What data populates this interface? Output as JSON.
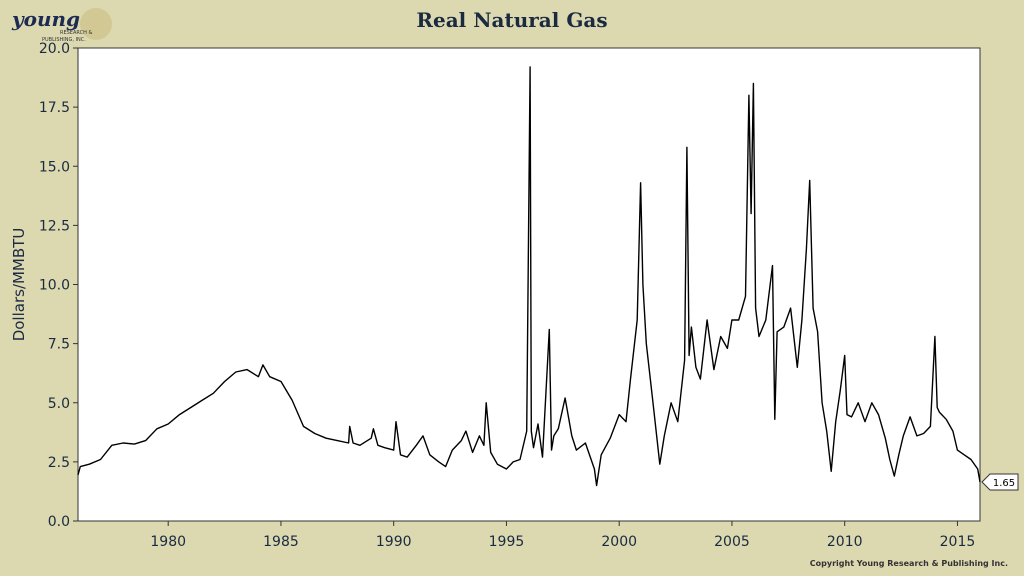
{
  "logo": {
    "wordmark": "young",
    "line2": "RESEARCH &",
    "line3": "PUBLISHING, INC."
  },
  "title": "Real Natural Gas",
  "copyright": "Copyright Young Research & Publishing Inc.",
  "colors": {
    "background": "#dcd9b1",
    "plot_bg": "#ffffff",
    "line": "#000000"
  },
  "chart_data": {
    "type": "line",
    "title": "Real Natural Gas",
    "xlabel": "",
    "ylabel": "Dollars/MMBTU",
    "xlim": [
      1976,
      2016
    ],
    "ylim": [
      0,
      20
    ],
    "x_ticks": [
      "1980",
      "1985",
      "1990",
      "1995",
      "2000",
      "2005",
      "2010",
      "2015"
    ],
    "y_ticks": [
      "0.0",
      "2.5",
      "5.0",
      "7.5",
      "10.0",
      "12.5",
      "15.0",
      "17.5",
      "20.0"
    ],
    "grid": false,
    "last_value_label": "1.65",
    "series": [
      {
        "x": [
          1976.0,
          1976.1,
          1976.5,
          1977.0,
          1977.5,
          1978.0,
          1978.5,
          1979.0,
          1979.5,
          1980.0,
          1980.5,
          1981.0,
          1981.5,
          1982.0,
          1982.5,
          1983.0,
          1983.5,
          1984.0,
          1984.2,
          1984.5,
          1985.0,
          1985.5,
          1986.0,
          1986.5,
          1987.0,
          1987.5,
          1988.0,
          1988.05,
          1988.2,
          1988.5,
          1989.0,
          1989.1,
          1989.3,
          1989.6,
          1990.0,
          1990.1,
          1990.3,
          1990.6,
          1991.0,
          1991.3,
          1991.6,
          1992.0,
          1992.3,
          1992.6,
          1993.0,
          1993.2,
          1993.5,
          1993.8,
          1994.0,
          1994.1,
          1994.3,
          1994.6,
          1995.0,
          1995.3,
          1995.6,
          1995.9,
          1996.05,
          1996.1,
          1996.2,
          1996.4,
          1996.6,
          1996.9,
          1997.0,
          1997.1,
          1997.3,
          1997.6,
          1997.9,
          1998.1,
          1998.5,
          1998.9,
          1999.0,
          1999.2,
          1999.6,
          2000.0,
          2000.3,
          2000.5,
          2000.8,
          2000.95,
          2001.05,
          2001.2,
          2001.5,
          2001.8,
          2002.0,
          2002.3,
          2002.6,
          2002.9,
          2003.0,
          2003.1,
          2003.2,
          2003.4,
          2003.6,
          2003.9,
          2004.2,
          2004.5,
          2004.8,
          2005.0,
          2005.3,
          2005.6,
          2005.75,
          2005.85,
          2005.95,
          2006.05,
          2006.2,
          2006.5,
          2006.8,
          2006.9,
          2007.0,
          2007.3,
          2007.6,
          2007.9,
          2008.1,
          2008.3,
          2008.45,
          2008.6,
          2008.8,
          2009.0,
          2009.2,
          2009.4,
          2009.6,
          2009.8,
          2010.0,
          2010.1,
          2010.3,
          2010.6,
          2010.9,
          2011.2,
          2011.5,
          2011.8,
          2012.0,
          2012.2,
          2012.4,
          2012.6,
          2012.9,
          2013.2,
          2013.5,
          2013.8,
          2014.0,
          2014.1,
          2014.2,
          2014.3,
          2014.5,
          2014.8,
          2015.0,
          2015.3,
          2015.6,
          2015.9,
          2016.0
        ],
        "values": [
          1.95,
          2.3,
          2.4,
          2.6,
          3.2,
          3.3,
          3.25,
          3.4,
          3.9,
          4.1,
          4.5,
          4.8,
          5.1,
          5.4,
          5.9,
          6.3,
          6.4,
          6.1,
          6.6,
          6.1,
          5.9,
          5.1,
          4.0,
          3.7,
          3.5,
          3.4,
          3.3,
          4.0,
          3.3,
          3.2,
          3.5,
          3.9,
          3.2,
          3.1,
          3.0,
          4.2,
          2.8,
          2.7,
          3.2,
          3.6,
          2.8,
          2.5,
          2.3,
          3.0,
          3.4,
          3.8,
          2.9,
          3.6,
          3.2,
          5.0,
          2.9,
          2.4,
          2.2,
          2.5,
          2.6,
          3.8,
          19.2,
          3.8,
          3.1,
          4.1,
          2.7,
          8.1,
          3.0,
          3.6,
          3.9,
          5.2,
          3.6,
          3.0,
          3.3,
          2.2,
          1.5,
          2.8,
          3.5,
          4.5,
          4.2,
          6.0,
          8.5,
          14.3,
          10.0,
          7.5,
          5.0,
          2.4,
          3.6,
          5.0,
          4.2,
          6.8,
          15.8,
          7.0,
          8.2,
          6.5,
          6.0,
          8.5,
          6.4,
          7.8,
          7.3,
          8.5,
          8.5,
          9.5,
          18.0,
          13.0,
          18.5,
          9.0,
          7.8,
          8.5,
          10.8,
          4.3,
          8.0,
          8.2,
          9.0,
          6.5,
          8.5,
          11.5,
          14.4,
          9.0,
          8.0,
          5.0,
          3.8,
          2.1,
          4.2,
          5.5,
          7.0,
          4.5,
          4.4,
          5.0,
          4.2,
          5.0,
          4.5,
          3.5,
          2.6,
          1.9,
          2.8,
          3.6,
          4.4,
          3.6,
          3.7,
          4.0,
          7.8,
          4.8,
          4.6,
          4.5,
          4.3,
          3.8,
          3.0,
          2.8,
          2.6,
          2.2,
          1.65
        ]
      }
    ]
  }
}
